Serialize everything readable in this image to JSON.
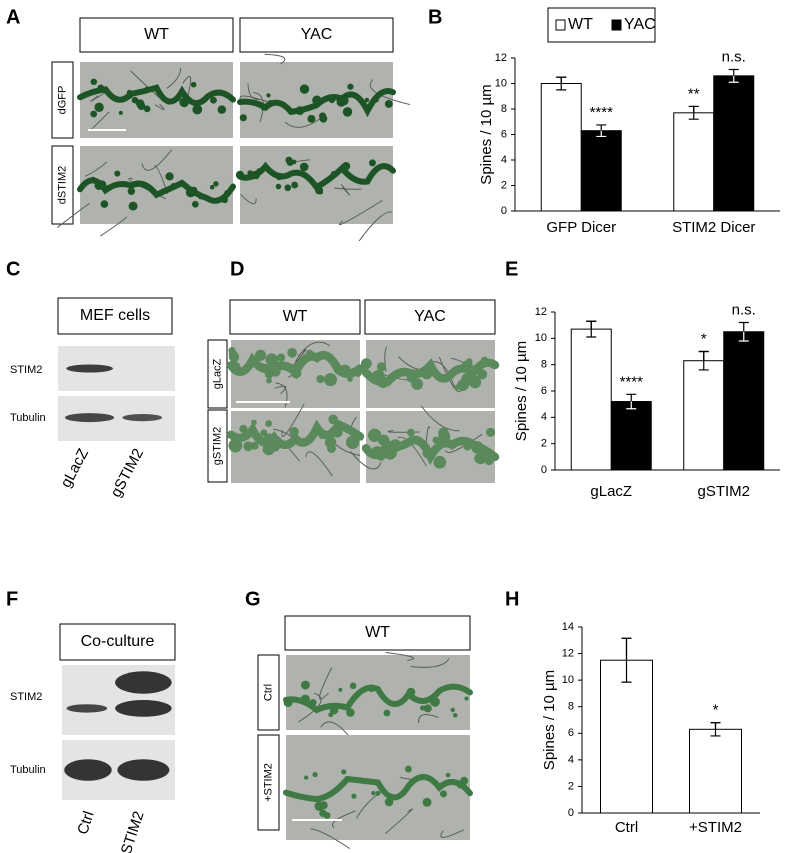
{
  "panels": {
    "A": {
      "letter": "A",
      "columns": [
        "WT",
        "YAC"
      ],
      "rows": [
        "dGFP",
        "dSTIM2"
      ]
    },
    "C": {
      "letter": "C",
      "header": "MEF cells",
      "rows": [
        "STIM2",
        "Tubulin"
      ],
      "lanes": [
        "gLacZ",
        "gSTIM2"
      ]
    },
    "D": {
      "letter": "D",
      "columns": [
        "WT",
        "YAC"
      ],
      "rows": [
        "gLacZ",
        "gSTIM2"
      ]
    },
    "F": {
      "letter": "F",
      "header": "Co-culture",
      "rows": [
        "STIM2",
        "Tubulin"
      ],
      "lanes": [
        "Ctrl",
        "+STIM2"
      ]
    },
    "G": {
      "letter": "G",
      "columns": [
        "WT"
      ],
      "rows": [
        "Ctrl",
        "+STIM2"
      ]
    }
  },
  "chart_data": [
    {
      "type": "bar",
      "panel": "B",
      "ylabel": "Spines / 10 µm",
      "categories": [
        "GFP Dicer",
        "STIM2 Dicer"
      ],
      "series": [
        {
          "name": "WT",
          "color": "#ffffff",
          "values": [
            10.0,
            7.7
          ],
          "errors": [
            0.5,
            0.5
          ],
          "labels": [
            null,
            "**"
          ]
        },
        {
          "name": "YAC",
          "color": "#000000",
          "values": [
            6.3,
            10.6
          ],
          "errors": [
            0.45,
            0.5
          ],
          "labels": [
            "****",
            "n.s."
          ]
        }
      ],
      "ylim": [
        0,
        12
      ],
      "yticks": [
        0,
        2,
        4,
        6,
        8,
        10,
        12
      ],
      "legend": true
    },
    {
      "type": "bar",
      "panel": "E",
      "ylabel": "Spines / 10 µm",
      "categories": [
        "gLacZ",
        "gSTIM2"
      ],
      "series": [
        {
          "color": "#ffffff",
          "values": [
            10.7,
            8.3
          ],
          "errors": [
            0.6,
            0.7
          ],
          "labels": [
            null,
            "*"
          ]
        },
        {
          "color": "#000000",
          "values": [
            5.2,
            10.5
          ],
          "errors": [
            0.55,
            0.7
          ],
          "labels": [
            "****",
            "n.s."
          ]
        }
      ],
      "ylim": [
        0,
        12
      ],
      "yticks": [
        0,
        2,
        4,
        6,
        8,
        10,
        12
      ],
      "legend": false
    },
    {
      "type": "bar",
      "panel": "H",
      "ylabel": "Spines / 10 µm",
      "categories": [
        "Ctrl",
        "+STIM2"
      ],
      "series": [
        {
          "color": "#ffffff",
          "values": [
            11.5,
            6.3
          ],
          "errors": [
            1.65,
            0.5
          ],
          "labels": [
            null,
            "*"
          ]
        }
      ],
      "ylim": [
        0,
        14
      ],
      "yticks": [
        0,
        2,
        4,
        6,
        8,
        10,
        12,
        14
      ],
      "legend": false
    }
  ]
}
